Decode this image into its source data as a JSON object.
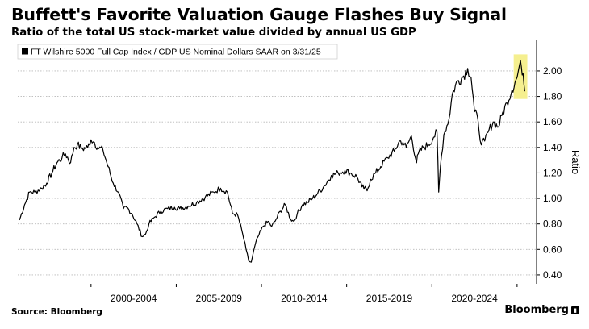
{
  "title": "Buffett's Favorite Valuation Gauge Flashes Buy Signal",
  "subtitle": "Ratio of the total US stock-market value divided by annual US GDP",
  "source": "Source: Bloomberg",
  "brand": "Bloomberg",
  "colors": {
    "line": "#000000",
    "highlight": "#f5ef8f",
    "grid": "#b8b8b8"
  },
  "chart_data": {
    "type": "line",
    "title": "Buffett's Favorite Valuation Gauge Flashes Buy Signal",
    "subtitle": "Ratio of the total US stock-market value divided by annual US GDP",
    "ylabel": "Ratio",
    "xlabel": "",
    "legend": "FT Wilshire 5000 Full Cap Index / GDP US Nominal Dollars SAAR on 3/31/25",
    "legend_position": "top-left",
    "x_tick_labels": [
      "2000-2004",
      "2005-2009",
      "2010-2014",
      "2015-2019",
      "2020-2024"
    ],
    "y_ticks": [
      0.4,
      0.6,
      0.8,
      1.0,
      1.2,
      1.4,
      1.6,
      1.8,
      2.0
    ],
    "y_tick_labels": [
      "0.40",
      "0.60",
      "0.80",
      "1.00",
      "1.20",
      "1.40",
      "1.60",
      "1.80",
      "2.00"
    ],
    "ylim": [
      0.33,
      2.24
    ],
    "xlim": [
      1995.5,
      2025.8
    ],
    "grid": "horizontal",
    "y_axis_position": "right",
    "highlight": {
      "x_range": [
        2024.6,
        2025.4
      ],
      "y_range": [
        1.78,
        2.13
      ],
      "color": "#f5ef8f"
    },
    "series": [
      {
        "name": "FT Wilshire 5000 Full Cap Index / GDP US Nominal Dollars SAAR on 3/31/25",
        "x": [
          1995.6,
          1995.9,
          1996.2,
          1996.5,
          1996.9,
          1997.2,
          1997.5,
          1997.8,
          1998.1,
          1998.3,
          1998.6,
          1998.8,
          1999.0,
          1999.3,
          1999.6,
          1999.8,
          2000.0,
          2000.2,
          2000.5,
          2000.8,
          2001.1,
          2001.4,
          2001.7,
          2001.9,
          2002.2,
          2002.5,
          2002.8,
          2003.0,
          2003.2,
          2003.5,
          2003.9,
          2004.3,
          2004.7,
          2005.0,
          2005.5,
          2006.0,
          2006.5,
          2007.0,
          2007.4,
          2007.8,
          2008.1,
          2008.4,
          2008.7,
          2008.9,
          2009.05,
          2009.2,
          2009.4,
          2009.6,
          2009.9,
          2010.2,
          2010.4,
          2010.6,
          2010.9,
          2011.2,
          2011.5,
          2011.7,
          2011.9,
          2012.2,
          2012.5,
          2012.8,
          2013.1,
          2013.5,
          2013.9,
          2014.3,
          2014.7,
          2015.0,
          2015.4,
          2015.7,
          2016.0,
          2016.2,
          2016.5,
          2016.8,
          2017.2,
          2017.6,
          2017.9,
          2018.1,
          2018.3,
          2018.6,
          2018.9,
          2019.0,
          2019.3,
          2019.6,
          2019.9,
          2020.1,
          2020.2,
          2020.3,
          2020.5,
          2020.8,
          2021.0,
          2021.3,
          2021.6,
          2021.9,
          2022.1,
          2022.3,
          2022.5,
          2022.7,
          2022.9,
          2023.1,
          2023.4,
          2023.7,
          2023.9,
          2024.2,
          2024.5,
          2024.8,
          2024.95,
          2025.05,
          2025.15,
          2025.25
        ],
        "values": [
          0.83,
          0.95,
          1.05,
          1.05,
          1.08,
          1.12,
          1.2,
          1.28,
          1.32,
          1.35,
          1.28,
          1.4,
          1.42,
          1.39,
          1.4,
          1.46,
          1.44,
          1.4,
          1.38,
          1.25,
          1.12,
          1.05,
          0.92,
          0.93,
          0.88,
          0.8,
          0.7,
          0.72,
          0.8,
          0.85,
          0.9,
          0.92,
          0.93,
          0.92,
          0.94,
          0.97,
          1.01,
          1.05,
          1.08,
          1.05,
          0.88,
          0.87,
          0.72,
          0.6,
          0.51,
          0.5,
          0.62,
          0.7,
          0.78,
          0.82,
          0.78,
          0.82,
          0.9,
          0.95,
          0.84,
          0.82,
          0.88,
          0.95,
          0.97,
          1.0,
          1.04,
          1.1,
          1.18,
          1.2,
          1.22,
          1.2,
          1.17,
          1.09,
          1.06,
          1.15,
          1.2,
          1.25,
          1.32,
          1.37,
          1.45,
          1.44,
          1.4,
          1.49,
          1.28,
          1.35,
          1.4,
          1.42,
          1.48,
          1.52,
          1.05,
          1.25,
          1.5,
          1.62,
          1.82,
          1.92,
          1.95,
          2.02,
          1.95,
          1.68,
          1.62,
          1.42,
          1.45,
          1.52,
          1.6,
          1.56,
          1.65,
          1.75,
          1.85,
          1.95,
          2.05,
          2.03,
          1.98,
          1.84
        ]
      }
    ]
  }
}
